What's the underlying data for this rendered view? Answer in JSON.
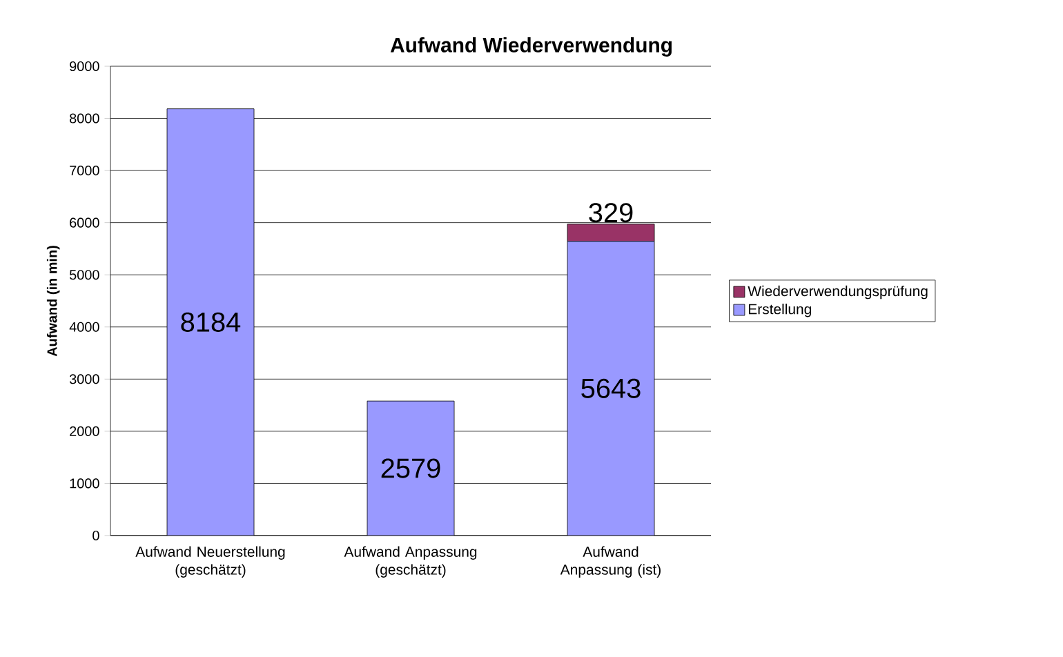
{
  "chart_data": {
    "type": "bar",
    "title": "Aufwand Wiederverwendung",
    "ylabel": "Aufwand (in min)",
    "categories": [
      "Aufwand Neuerstellung (geschätzt)",
      "Aufwand Anpassung (geschätzt)",
      "Aufwand Anpassung (ist)"
    ],
    "stacked": true,
    "series": [
      {
        "name": "Erstellung",
        "color": "#9999ff",
        "values": [
          8184,
          2579,
          5643
        ]
      },
      {
        "name": "Wiederverwendungsprüfung",
        "color": "#993366",
        "values": [
          null,
          null,
          329
        ]
      }
    ],
    "ylim": [
      0,
      9000
    ],
    "yticks": [
      0,
      1000,
      2000,
      3000,
      4000,
      5000,
      6000,
      7000,
      8000,
      9000
    ],
    "grid": "y",
    "legend": "right",
    "data_labels": true
  }
}
